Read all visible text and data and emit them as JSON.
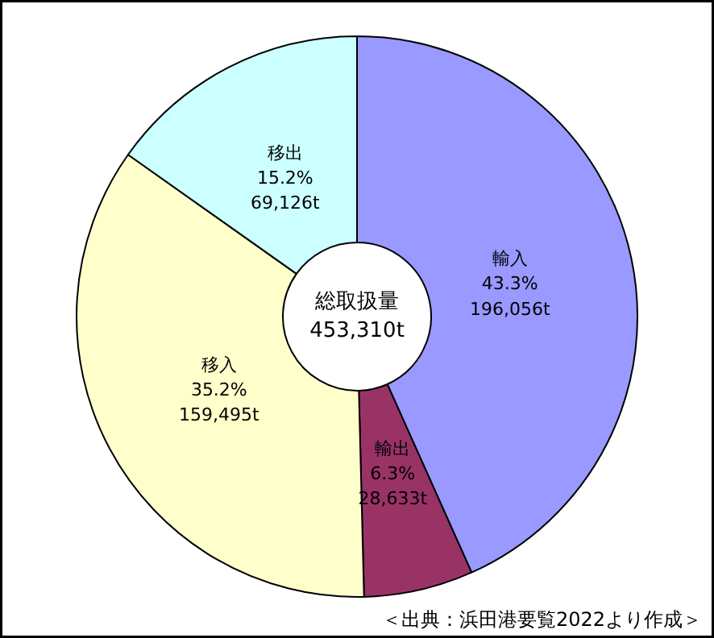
{
  "chart_data": {
    "type": "donut",
    "title": "総取扱量\n453,310t",
    "categories": [
      "輸入",
      "輸出",
      "移入",
      "移出"
    ],
    "values": [
      43.3,
      6.3,
      35.2,
      15.2
    ],
    "colors": [
      "#9999ff",
      "#993366",
      "#ffffcc",
      "#ccffff"
    ],
    "value_labels": [
      "43.3%\n196,056t",
      "6.3%\n28,633t",
      "35.2%\n159,495t",
      "15.2%\n69,126t"
    ],
    "annotations": [
      "＜出典：浜田港要覧2022より作成＞"
    ]
  }
}
